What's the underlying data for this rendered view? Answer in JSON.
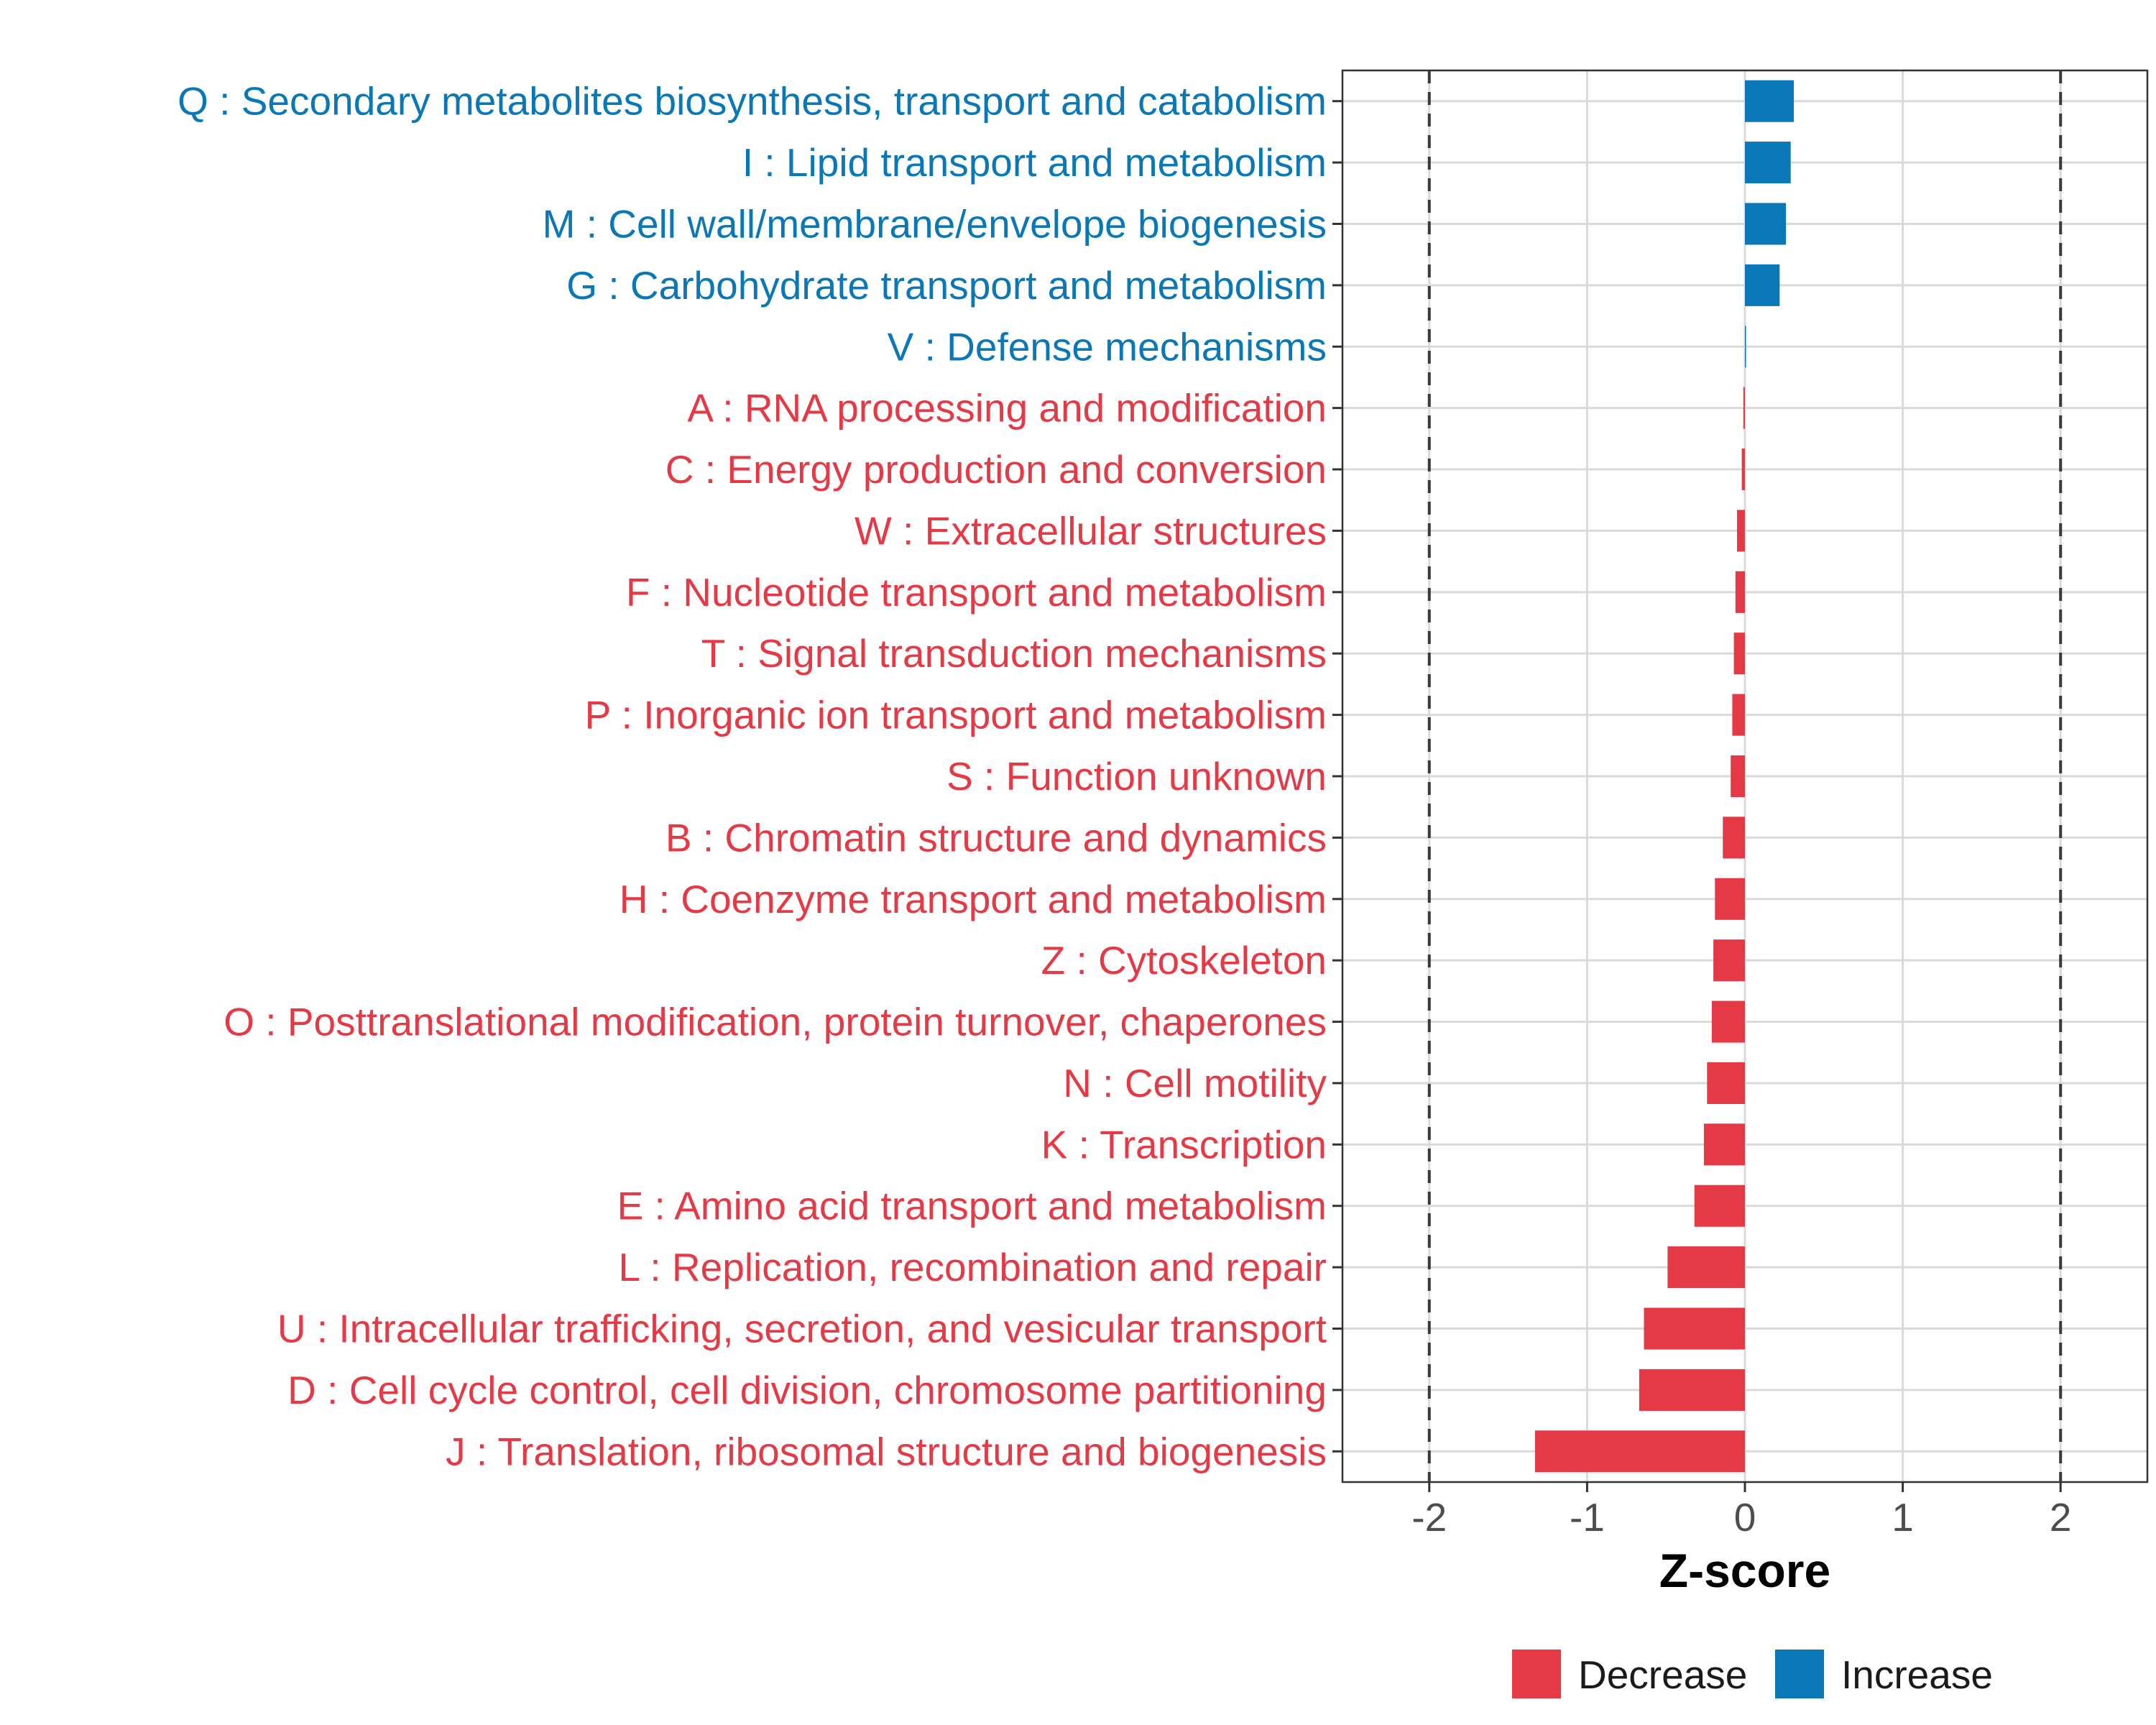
{
  "chart_data": {
    "type": "bar",
    "orientation": "horizontal",
    "title": "",
    "xlabel": "Z-score",
    "ylabel": "",
    "xlim": [
      -2.55,
      2.55
    ],
    "xticks": [
      -2,
      -1,
      0,
      1,
      2
    ],
    "xtick_labels": [
      "-2",
      "-1",
      "0",
      "1",
      "2"
    ],
    "reference_lines": [
      -2,
      2
    ],
    "grid": true,
    "colors": {
      "Decrease": "#E63946",
      "Increase": "#0A77B6"
    },
    "categories": [
      "Q : Secondary metabolites biosynthesis, transport and catabolism",
      "I : Lipid transport and metabolism",
      "M : Cell wall/membrane/envelope biogenesis",
      "G : Carbohydrate transport and metabolism",
      "V : Defense mechanisms",
      "A : RNA processing and modification",
      "C : Energy production and conversion",
      "W : Extracellular structures",
      "F : Nucleotide transport and metabolism",
      "T : Signal transduction mechanisms",
      "P : Inorganic ion transport and metabolism",
      "S : Function unknown",
      "B : Chromatin structure and dynamics",
      "H : Coenzyme transport and metabolism",
      "Z : Cytoskeleton",
      "O : Posttranslational modification, protein turnover, chaperones",
      "N : Cell motility",
      "K : Transcription",
      "E : Amino acid transport and metabolism",
      "L : Replication, recombination and repair",
      "U : Intracellular trafficking, secretion, and vesicular transport",
      "D : Cell cycle control, cell division, chromosome partitioning",
      "J : Translation, ribosomal structure and biogenesis"
    ],
    "values": [
      0.31,
      0.29,
      0.26,
      0.22,
      0.005,
      -0.01,
      -0.02,
      -0.05,
      -0.06,
      -0.07,
      -0.08,
      -0.09,
      -0.14,
      -0.19,
      -0.2,
      -0.21,
      -0.24,
      -0.26,
      -0.32,
      -0.49,
      -0.64,
      -0.67,
      -1.33
    ],
    "groups": [
      "Increase",
      "Increase",
      "Increase",
      "Increase",
      "Increase",
      "Decrease",
      "Decrease",
      "Decrease",
      "Decrease",
      "Decrease",
      "Decrease",
      "Decrease",
      "Decrease",
      "Decrease",
      "Decrease",
      "Decrease",
      "Decrease",
      "Decrease",
      "Decrease",
      "Decrease",
      "Decrease",
      "Decrease",
      "Decrease"
    ],
    "legend": {
      "position": "bottom",
      "entries": [
        {
          "label": "Decrease",
          "color": "#E63946"
        },
        {
          "label": "Increase",
          "color": "#0A77B6"
        }
      ]
    }
  }
}
